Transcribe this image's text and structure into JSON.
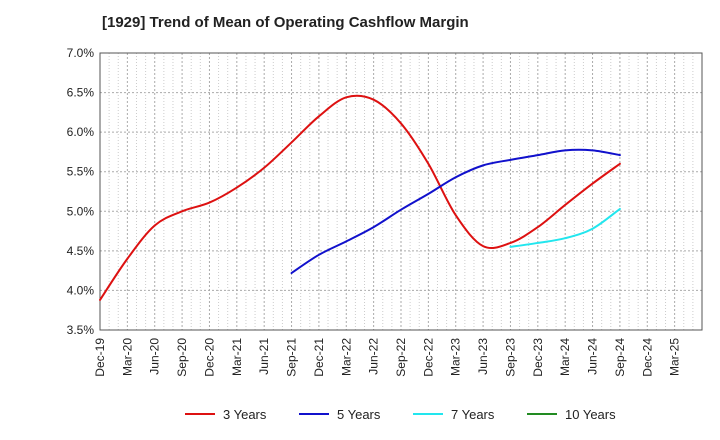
{
  "chart_data": {
    "type": "line",
    "title": "[1929]  Trend of Mean of Operating Cashflow Margin",
    "xlabel": "",
    "ylabel": "",
    "ylim": [
      3.5,
      7.0
    ],
    "y_ticks": [
      "3.5%",
      "4.0%",
      "4.5%",
      "5.0%",
      "5.5%",
      "6.0%",
      "6.5%",
      "7.0%"
    ],
    "y_tick_values": [
      3.5,
      4.0,
      4.5,
      5.0,
      5.5,
      6.0,
      6.5,
      7.0
    ],
    "x_ticks": [
      "Dec-19",
      "Mar-20",
      "Jun-20",
      "Sep-20",
      "Dec-20",
      "Mar-21",
      "Jun-21",
      "Sep-21",
      "Dec-21",
      "Mar-22",
      "Jun-22",
      "Sep-22",
      "Dec-22",
      "Mar-23",
      "Jun-23",
      "Sep-23",
      "Dec-23",
      "Mar-24",
      "Jun-24",
      "Sep-24",
      "Dec-24",
      "Mar-25"
    ],
    "grid": true,
    "legend_position": "bottom",
    "series": [
      {
        "name": "3 Years",
        "color": "#dd1111",
        "values": [
          3.88,
          4.4,
          4.82,
          5.0,
          5.11,
          5.3,
          5.55,
          5.87,
          6.2,
          6.44,
          6.41,
          6.11,
          5.6,
          4.95,
          4.56,
          4.6,
          4.8,
          5.08,
          5.35,
          5.6,
          null,
          null
        ]
      },
      {
        "name": "5 Years",
        "color": "#1111cc",
        "values": [
          null,
          null,
          null,
          null,
          null,
          null,
          null,
          4.22,
          4.45,
          4.62,
          4.8,
          5.02,
          5.22,
          5.43,
          5.58,
          5.65,
          5.71,
          5.77,
          5.77,
          5.71,
          null,
          null
        ]
      },
      {
        "name": "7 Years",
        "color": "#22e6ee",
        "values": [
          null,
          null,
          null,
          null,
          null,
          null,
          null,
          null,
          null,
          null,
          null,
          null,
          null,
          null,
          null,
          4.55,
          4.6,
          4.66,
          4.78,
          5.03,
          null,
          null
        ]
      },
      {
        "name": "10 Years",
        "color": "#228b22",
        "values": [
          null,
          null,
          null,
          null,
          null,
          null,
          null,
          null,
          null,
          null,
          null,
          null,
          null,
          null,
          null,
          null,
          null,
          null,
          null,
          null,
          null,
          null
        ]
      }
    ]
  }
}
